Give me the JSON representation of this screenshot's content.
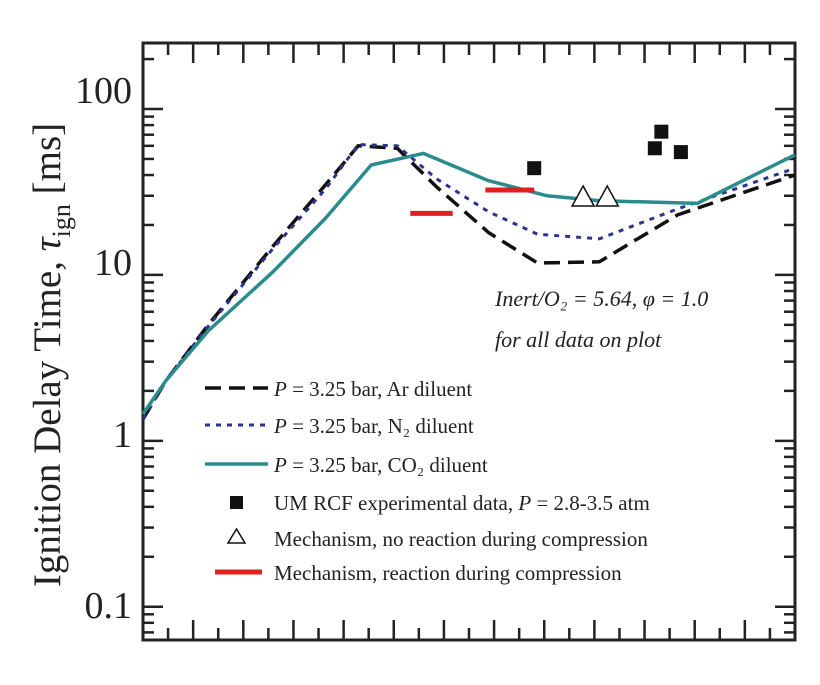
{
  "chart_data": {
    "type": "line",
    "ylabel_main": "Ignition Delay Time, ",
    "ylabel_symbol": "τ",
    "ylabel_sub": "ign",
    "ylabel_units": " [ms]",
    "y_scale": "log",
    "ylim": [
      0.063,
      250
    ],
    "xlim": [
      0,
      1
    ],
    "yticks": [
      {
        "value": 100,
        "label": "100"
      },
      {
        "value": 10,
        "label": "10"
      },
      {
        "value": 1,
        "label": "1"
      },
      {
        "value": 0.1,
        "label": "0.1"
      }
    ],
    "annotation_line1": "Inert/O₂ = 5.64, φ = 1.0",
    "annotation_line2": "for all data on plot",
    "series": [
      {
        "key": "ar",
        "legend_var": "P",
        "legend_text": " = 3.25 bar, Ar diluent",
        "color": "#111111",
        "style": "dashed",
        "points": [
          [
            0.0,
            1.35
          ],
          [
            0.035,
            2.3
          ],
          [
            0.1,
            5.0
          ],
          [
            0.2,
            15.0
          ],
          [
            0.28,
            35.0
          ],
          [
            0.33,
            60.0
          ],
          [
            0.39,
            58.0
          ],
          [
            0.45,
            34.0
          ],
          [
            0.53,
            18.0
          ],
          [
            0.605,
            11.8
          ],
          [
            0.7,
            12.0
          ],
          [
            0.82,
            23.0
          ],
          [
            1.0,
            40.0
          ]
        ]
      },
      {
        "key": "n2",
        "legend_var": "P",
        "legend_text": " = 3.25 bar, N₂ diluent",
        "color": "#2a3590",
        "style": "dotted",
        "points": [
          [
            0.0,
            1.35
          ],
          [
            0.035,
            2.3
          ],
          [
            0.1,
            4.9
          ],
          [
            0.2,
            14.5
          ],
          [
            0.28,
            33.0
          ],
          [
            0.33,
            61.0
          ],
          [
            0.39,
            60.0
          ],
          [
            0.45,
            38.0
          ],
          [
            0.53,
            24.0
          ],
          [
            0.605,
            17.6
          ],
          [
            0.7,
            16.5
          ],
          [
            0.82,
            25.0
          ],
          [
            1.0,
            44.0
          ]
        ]
      },
      {
        "key": "co2",
        "legend_var": "P",
        "legend_text": " = 3.25 bar, CO₂ diluent",
        "color": "#2a8c8c",
        "style": "solid",
        "points": [
          [
            0.0,
            1.45
          ],
          [
            0.035,
            2.3
          ],
          [
            0.1,
            4.6
          ],
          [
            0.2,
            10.5
          ],
          [
            0.28,
            22.0
          ],
          [
            0.35,
            46.0
          ],
          [
            0.43,
            54.0
          ],
          [
            0.53,
            37.0
          ],
          [
            0.62,
            30.0
          ],
          [
            0.7,
            28.0
          ],
          [
            0.85,
            27.0
          ],
          [
            1.0,
            53.0
          ]
        ]
      }
    ],
    "experimental": {
      "legend_text": "UM RCF experimental data, ",
      "legend_var": "P",
      "legend_text2": " = 2.8-3.5 atm",
      "color": "#111111",
      "points": [
        [
          0.6,
          44.0
        ],
        [
          0.785,
          58.0
        ],
        [
          0.795,
          73.0
        ],
        [
          0.825,
          55.0
        ]
      ]
    },
    "mechanism_no_reaction": {
      "legend_text": "Mechanism, no reaction during compression",
      "points": [
        [
          0.675,
          29.5
        ],
        [
          0.712,
          29.5
        ]
      ]
    },
    "mechanism_reaction": {
      "legend_text": "Mechanism, reaction during compression",
      "color": "#e02020",
      "segments": [
        [
          0.41,
          0.475,
          23.5
        ],
        [
          0.525,
          0.6,
          32.5
        ]
      ]
    }
  }
}
